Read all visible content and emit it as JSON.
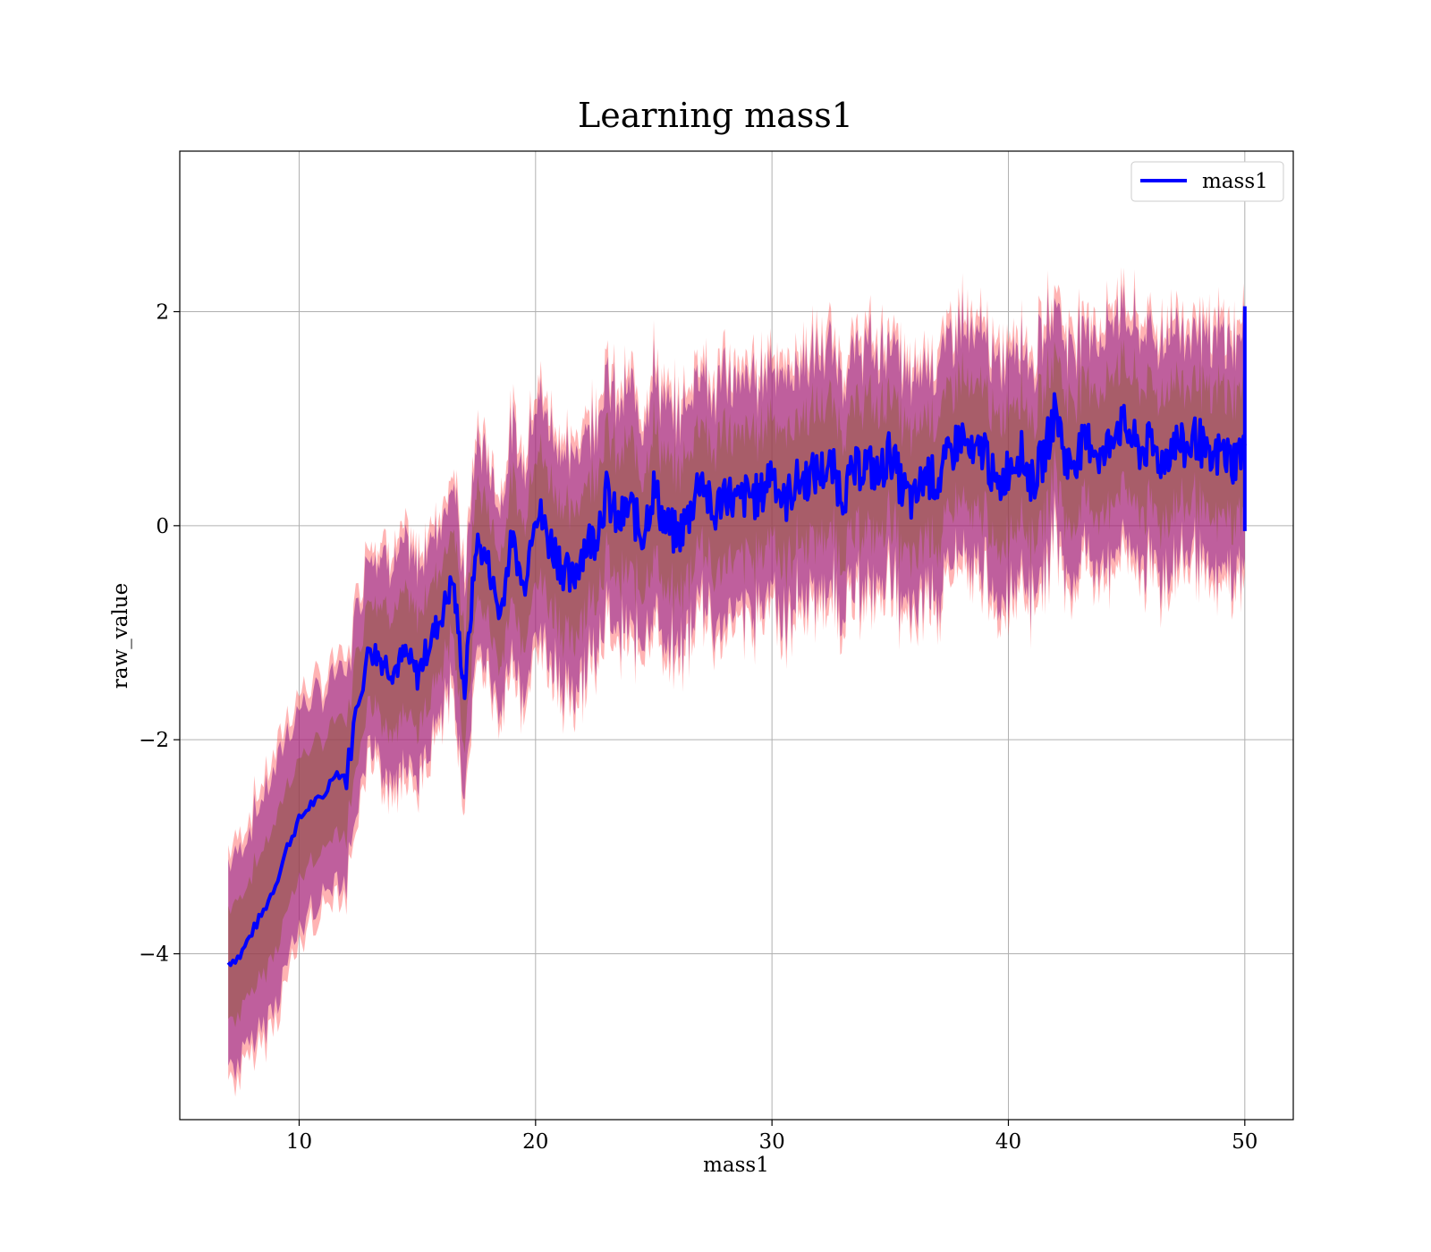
{
  "chart_data": {
    "type": "line",
    "title": "Learning mass1",
    "xlabel": "mass1",
    "ylabel": "raw_value",
    "xlim": [
      4.95,
      52.05
    ],
    "ylim": [
      -5.55,
      3.5
    ],
    "xticks": [
      10,
      20,
      30,
      40,
      50
    ],
    "yticks": [
      -4,
      -2,
      0,
      2
    ],
    "xtick_labels": [
      "10",
      "20",
      "30",
      "40",
      "50"
    ],
    "ytick_labels": [
      "−4",
      "−2",
      "0",
      "2"
    ],
    "grid": true,
    "legend": {
      "position": "upper right",
      "entries": [
        "mass1"
      ]
    },
    "colors": {
      "line": "#0000ff",
      "outer_band": "#ff4040",
      "inner_band": "#8b1a8b",
      "mean_band": "#8b5a2b"
    },
    "series": [
      {
        "name": "mass1",
        "x": [
          7.0,
          7.5,
          8.0,
          8.5,
          9.0,
          9.5,
          10.0,
          10.5,
          11.0,
          11.5,
          12.0,
          12.5,
          13.0,
          13.5,
          14.0,
          14.5,
          15.0,
          15.5,
          16.0,
          16.5,
          17.0,
          17.5,
          18.0,
          18.5,
          19.0,
          19.5,
          20.0,
          20.5,
          21.0,
          21.5,
          22.0,
          22.5,
          23.0,
          23.5,
          24.0,
          24.5,
          25.0,
          25.5,
          26.0,
          26.5,
          27.0,
          27.5,
          28.0,
          28.5,
          29.0,
          29.5,
          30.0,
          30.5,
          31.0,
          31.5,
          32.0,
          32.5,
          33.0,
          33.5,
          34.0,
          34.5,
          35.0,
          35.5,
          36.0,
          36.5,
          37.0,
          37.5,
          38.0,
          38.5,
          39.0,
          39.5,
          40.0,
          40.5,
          41.0,
          41.5,
          42.0,
          42.5,
          43.0,
          43.5,
          44.0,
          44.5,
          45.0,
          45.5,
          46.0,
          46.5,
          47.0,
          47.5,
          48.0,
          48.5,
          49.0,
          49.5,
          50.0
        ],
        "y": [
          -4.08,
          -4.02,
          -3.8,
          -3.6,
          -3.35,
          -3.0,
          -2.75,
          -2.6,
          -2.55,
          -2.3,
          -2.35,
          -1.6,
          -1.15,
          -1.25,
          -1.35,
          -1.2,
          -1.4,
          -1.1,
          -0.85,
          -0.5,
          -1.55,
          -0.15,
          -0.35,
          -0.85,
          -0.1,
          -0.6,
          0.2,
          -0.1,
          -0.3,
          -0.55,
          -0.2,
          -0.1,
          0.3,
          0.0,
          0.2,
          -0.1,
          0.35,
          0.0,
          -0.1,
          0.1,
          0.5,
          0.05,
          0.35,
          0.2,
          0.3,
          0.25,
          0.55,
          0.2,
          0.4,
          0.45,
          0.5,
          0.55,
          0.3,
          0.5,
          0.6,
          0.45,
          0.7,
          0.35,
          0.2,
          0.5,
          0.4,
          0.65,
          0.85,
          0.6,
          0.75,
          0.3,
          0.55,
          0.7,
          0.4,
          0.65,
          1.1,
          0.55,
          0.7,
          0.8,
          0.6,
          0.95,
          0.9,
          0.7,
          0.75,
          0.6,
          0.8,
          0.7,
          0.85,
          0.55,
          0.7,
          0.6,
          0.75
        ],
        "outer_halfwidth": [
          1.05,
          1.1,
          1.15,
          1.2,
          1.2,
          1.2,
          1.15,
          1.1,
          1.05,
          1.05,
          1.05,
          1.0,
          1.05,
          1.1,
          1.1,
          1.1,
          1.1,
          1.05,
          1.0,
          1.05,
          1.1,
          1.05,
          1.05,
          1.1,
          1.15,
          1.2,
          1.2,
          1.2,
          1.2,
          1.2,
          1.2,
          1.2,
          1.2,
          1.2,
          1.2,
          1.2,
          1.2,
          1.2,
          1.2,
          1.2,
          1.2,
          1.2,
          1.2,
          1.2,
          1.2,
          1.2,
          1.2,
          1.2,
          1.2,
          1.2,
          1.2,
          1.2,
          1.2,
          1.2,
          1.2,
          1.2,
          1.2,
          1.2,
          1.2,
          1.2,
          1.2,
          1.2,
          1.2,
          1.2,
          1.2,
          1.2,
          1.2,
          1.2,
          1.2,
          1.2,
          1.2,
          1.2,
          1.2,
          1.2,
          1.2,
          1.2,
          1.2,
          1.2,
          1.2,
          1.2,
          1.2,
          1.2,
          1.2,
          1.2,
          1.2,
          1.2,
          1.2
        ]
      }
    ]
  }
}
